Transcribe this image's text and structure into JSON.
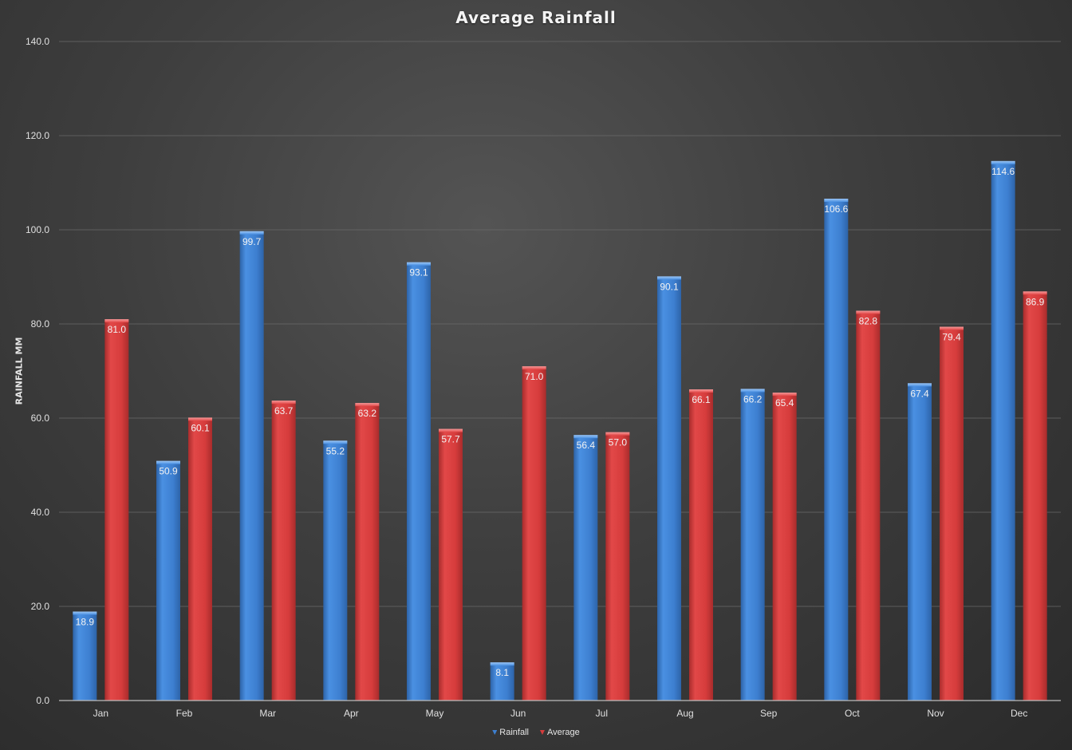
{
  "chart_data": {
    "type": "bar",
    "title": "Average Rainfall",
    "xlabel": "",
    "ylabel": "RAINFALL MM",
    "categories": [
      "Jan",
      "Feb",
      "Mar",
      "Apr",
      "May",
      "Jun",
      "Jul",
      "Aug",
      "Sep",
      "Oct",
      "Nov",
      "Dec"
    ],
    "series": [
      {
        "name": "Rainfall",
        "color": "#3d7fd0",
        "values": [
          18.9,
          50.9,
          99.7,
          55.2,
          93.1,
          8.1,
          56.4,
          90.1,
          66.2,
          106.6,
          67.4,
          114.6
        ],
        "labels": [
          "18.9",
          "50.9",
          "99.7",
          "55.2",
          "93.1",
          "8.1",
          "56.4",
          "90.1",
          "66.2",
          "106.6",
          "67.4",
          "114.6"
        ]
      },
      {
        "name": "Average",
        "color": "#d63c3c",
        "values": [
          81.0,
          60.1,
          63.7,
          63.2,
          57.7,
          71.0,
          57.0,
          66.1,
          65.4,
          82.8,
          79.4,
          86.9
        ],
        "labels": [
          "81.0",
          "60.1",
          "63.7",
          "63.2",
          "57.7",
          "71.0",
          "57.0",
          "66.1",
          "65.4",
          "82.8",
          "79.4",
          "86.9"
        ]
      }
    ],
    "ylim": [
      0,
      140
    ],
    "yticks": [
      0,
      20,
      40,
      60,
      80,
      100,
      120,
      140
    ],
    "ytick_labels": [
      "0.0",
      "20.0",
      "40.0",
      "60.0",
      "80.0",
      "100.0",
      "120.0",
      "140.0"
    ],
    "grid": true,
    "legend_position": "bottom"
  }
}
